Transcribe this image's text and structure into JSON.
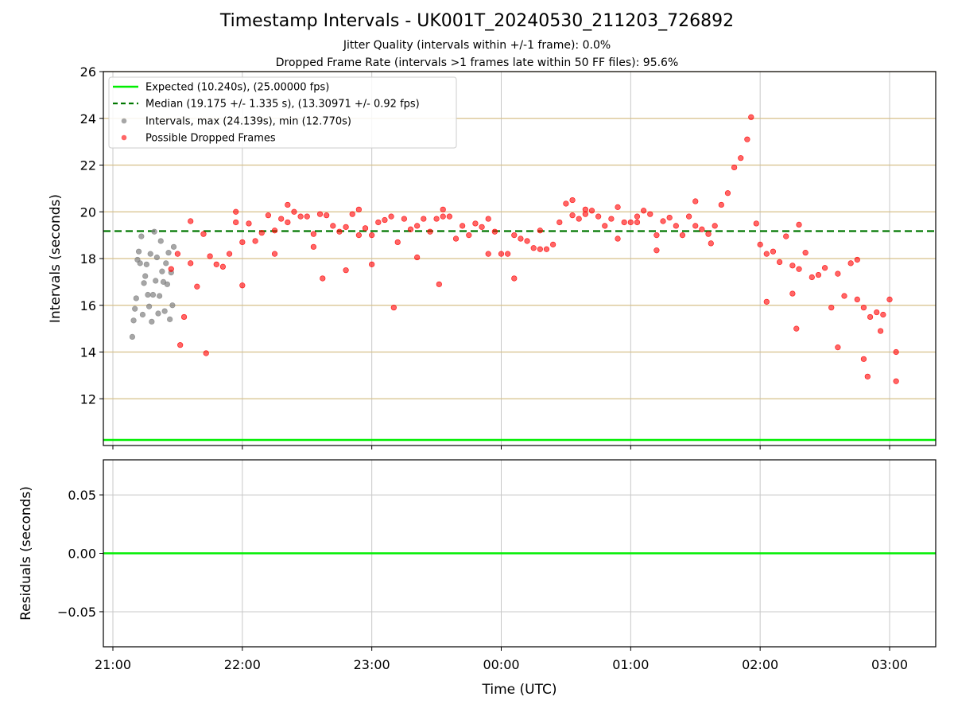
{
  "header": {
    "title": "Timestamp Intervals - UK001T_20240530_211203_726892",
    "subtitle_1": "Jitter Quality (intervals within +/-1 frame): 0.0%",
    "subtitle_2": "Dropped Frame Rate (intervals >1 frames late within 50 FF files): 95.6%"
  },
  "colors": {
    "expected": "#00ee00",
    "median": "#007700",
    "intervals": "#808080",
    "dropped": "#ff0000",
    "hgrid": "#d6c08a",
    "vgrid": "#c8c8c8"
  },
  "chart_data": [
    {
      "type": "scatter",
      "ylabel": "Intervals (seconds)",
      "ylim": [
        10.0,
        26.0
      ],
      "yticks": [
        12,
        14,
        16,
        18,
        20,
        22,
        24,
        26
      ],
      "grid": true,
      "legend_position": "top-left",
      "legend": [
        "Expected (10.240s), (25.00000 fps)",
        "Median (19.175 +/- 1.335 s), (13.30971 +/- 0.92 fps)",
        "Intervals, max (24.139s), min (12.770s)",
        "Possible Dropped Frames"
      ],
      "reference_lines": {
        "expected": 10.24,
        "median": 19.175
      },
      "gray_points": [
        [
          21.15,
          14.65
        ],
        [
          21.16,
          15.35
        ],
        [
          21.17,
          15.85
        ],
        [
          21.18,
          16.3
        ],
        [
          21.19,
          17.95
        ],
        [
          21.2,
          18.3
        ],
        [
          21.21,
          17.8
        ],
        [
          21.22,
          18.95
        ],
        [
          21.23,
          15.6
        ],
        [
          21.24,
          16.95
        ],
        [
          21.25,
          17.25
        ],
        [
          21.26,
          17.75
        ],
        [
          21.27,
          16.45
        ],
        [
          21.28,
          15.95
        ],
        [
          21.29,
          18.2
        ],
        [
          21.3,
          15.3
        ],
        [
          21.31,
          16.45
        ],
        [
          21.32,
          19.15
        ],
        [
          21.33,
          17.05
        ],
        [
          21.34,
          18.05
        ],
        [
          21.35,
          15.65
        ],
        [
          21.36,
          16.4
        ],
        [
          21.37,
          18.75
        ],
        [
          21.38,
          17.45
        ],
        [
          21.39,
          17.0
        ],
        [
          21.4,
          15.75
        ],
        [
          21.41,
          17.8
        ],
        [
          21.42,
          16.9
        ],
        [
          21.43,
          18.25
        ],
        [
          21.44,
          15.4
        ],
        [
          21.45,
          17.4
        ],
        [
          21.46,
          16.0
        ],
        [
          21.47,
          18.5
        ]
      ],
      "red_points": [
        [
          21.45,
          17.55
        ],
        [
          21.5,
          18.2
        ],
        [
          21.55,
          15.5
        ],
        [
          21.6,
          17.8
        ],
        [
          21.65,
          16.8
        ],
        [
          21.7,
          19.05
        ],
        [
          21.75,
          18.1
        ],
        [
          21.8,
          17.75
        ],
        [
          21.85,
          17.65
        ],
        [
          21.9,
          18.2
        ],
        [
          21.95,
          19.55
        ],
        [
          22.0,
          18.7
        ],
        [
          22.05,
          19.5
        ],
        [
          22.1,
          18.75
        ],
        [
          22.15,
          19.1
        ],
        [
          22.2,
          19.85
        ],
        [
          22.25,
          19.2
        ],
        [
          22.3,
          19.7
        ],
        [
          22.35,
          19.55
        ],
        [
          22.4,
          20.0
        ],
        [
          22.45,
          19.8
        ],
        [
          22.5,
          19.8
        ],
        [
          22.55,
          19.05
        ],
        [
          22.6,
          19.9
        ],
        [
          22.65,
          19.85
        ],
        [
          22.7,
          19.4
        ],
        [
          22.75,
          19.15
        ],
        [
          22.8,
          19.35
        ],
        [
          22.85,
          19.9
        ],
        [
          22.9,
          19.0
        ],
        [
          22.95,
          19.3
        ],
        [
          23.0,
          19.0
        ],
        [
          23.05,
          19.55
        ],
        [
          23.1,
          19.65
        ],
        [
          23.15,
          19.8
        ],
        [
          23.2,
          18.7
        ],
        [
          23.25,
          19.7
        ],
        [
          23.3,
          19.25
        ],
        [
          23.35,
          19.4
        ],
        [
          23.4,
          19.7
        ],
        [
          23.45,
          19.15
        ],
        [
          23.5,
          19.7
        ],
        [
          23.55,
          19.8
        ],
        [
          23.6,
          19.8
        ],
        [
          23.65,
          18.85
        ],
        [
          23.7,
          19.4
        ],
        [
          23.75,
          19.0
        ],
        [
          23.8,
          19.5
        ],
        [
          23.85,
          19.35
        ],
        [
          23.9,
          19.7
        ],
        [
          23.95,
          19.15
        ],
        [
          24.0,
          18.2
        ],
        [
          24.05,
          18.2
        ],
        [
          24.1,
          19.0
        ],
        [
          24.15,
          18.85
        ],
        [
          24.2,
          18.75
        ],
        [
          24.25,
          18.45
        ],
        [
          24.3,
          18.4
        ],
        [
          24.35,
          18.4
        ],
        [
          24.4,
          18.6
        ],
        [
          24.45,
          19.55
        ],
        [
          24.5,
          20.35
        ],
        [
          24.55,
          19.85
        ],
        [
          24.6,
          19.7
        ],
        [
          24.65,
          19.9
        ],
        [
          24.7,
          20.05
        ],
        [
          24.75,
          19.8
        ],
        [
          24.8,
          19.4
        ],
        [
          24.85,
          19.7
        ],
        [
          24.9,
          20.2
        ],
        [
          24.95,
          19.55
        ],
        [
          25.0,
          19.55
        ],
        [
          25.05,
          19.8
        ],
        [
          25.1,
          20.05
        ],
        [
          25.15,
          19.9
        ],
        [
          25.2,
          19.0
        ],
        [
          25.25,
          19.6
        ],
        [
          25.3,
          19.75
        ],
        [
          25.35,
          19.4
        ],
        [
          25.4,
          19.0
        ],
        [
          25.45,
          19.8
        ],
        [
          25.5,
          19.4
        ],
        [
          25.55,
          19.25
        ],
        [
          25.6,
          19.05
        ],
        [
          25.65,
          19.4
        ],
        [
          25.7,
          20.3
        ],
        [
          25.75,
          20.8
        ],
        [
          25.8,
          21.9
        ],
        [
          25.85,
          22.3
        ],
        [
          25.9,
          23.1
        ],
        [
          25.93,
          24.05
        ],
        [
          25.97,
          19.5
        ],
        [
          26.0,
          18.6
        ],
        [
          26.05,
          18.2
        ],
        [
          26.1,
          18.3
        ],
        [
          26.15,
          17.85
        ],
        [
          26.2,
          18.95
        ],
        [
          26.25,
          17.7
        ],
        [
          26.3,
          17.55
        ],
        [
          26.35,
          18.25
        ],
        [
          26.4,
          17.2
        ],
        [
          26.45,
          17.3
        ],
        [
          26.5,
          17.6
        ],
        [
          26.55,
          15.9
        ],
        [
          26.6,
          17.35
        ],
        [
          26.65,
          16.4
        ],
        [
          26.7,
          17.8
        ],
        [
          26.75,
          16.25
        ],
        [
          26.8,
          15.9
        ],
        [
          26.85,
          15.5
        ],
        [
          26.9,
          15.7
        ],
        [
          26.95,
          15.6
        ],
        [
          27.0,
          16.25
        ],
        [
          27.05,
          14.0
        ],
        [
          21.52,
          14.3
        ],
        [
          21.72,
          13.95
        ],
        [
          22.0,
          16.85
        ],
        [
          22.62,
          17.15
        ],
        [
          23.17,
          15.9
        ],
        [
          23.52,
          16.9
        ],
        [
          24.1,
          17.15
        ],
        [
          26.05,
          16.15
        ],
        [
          26.28,
          15.0
        ],
        [
          26.83,
          12.95
        ],
        [
          27.05,
          12.75
        ],
        [
          21.6,
          19.6
        ],
        [
          21.95,
          20.0
        ],
        [
          22.25,
          18.2
        ],
        [
          22.35,
          20.3
        ],
        [
          22.9,
          20.1
        ],
        [
          23.0,
          17.75
        ],
        [
          23.55,
          20.1
        ],
        [
          24.65,
          20.1
        ],
        [
          25.05,
          19.55
        ],
        [
          25.5,
          20.45
        ],
        [
          25.62,
          18.65
        ],
        [
          24.55,
          20.5
        ],
        [
          26.3,
          19.45
        ],
        [
          26.25,
          16.5
        ],
        [
          26.75,
          17.95
        ],
        [
          26.6,
          14.2
        ],
        [
          26.8,
          13.7
        ],
        [
          26.93,
          14.9
        ],
        [
          22.55,
          18.5
        ],
        [
          22.8,
          17.5
        ],
        [
          23.35,
          18.05
        ],
        [
          23.9,
          18.2
        ],
        [
          24.3,
          19.2
        ],
        [
          24.9,
          18.85
        ],
        [
          25.2,
          18.35
        ]
      ]
    },
    {
      "type": "line",
      "xlabel": "Time (UTC)",
      "ylabel": "Residuals (seconds)",
      "ylim": [
        -0.08,
        0.08
      ],
      "yticks": [
        "0.05",
        "0.00",
        "−0.05"
      ],
      "x_tick_labels": [
        "21:00",
        "22:00",
        "23:00",
        "00:00",
        "01:00",
        "02:00",
        "03:00"
      ],
      "values": [
        0.0
      ]
    }
  ]
}
